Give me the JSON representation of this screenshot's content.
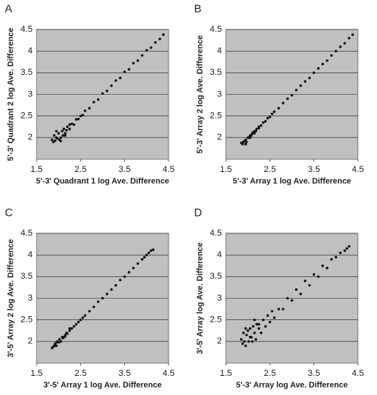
{
  "chart_data": [
    {
      "type": "scatter",
      "panel_label": "A",
      "x_label": "5'-3' Quadrant 1 log Ave. Difference",
      "y_label": "5'-3' Quadrant 2 log Ave. Difference",
      "x": [
        1.85,
        1.88,
        1.9,
        1.92,
        1.95,
        1.97,
        2.0,
        2.02,
        2.05,
        2.08,
        2.1,
        2.12,
        2.15,
        2.18,
        2.2,
        2.25,
        2.3,
        2.35,
        2.4,
        2.45,
        2.5,
        2.55,
        2.6,
        2.7,
        2.8,
        2.9,
        3.0,
        3.1,
        3.2,
        3.3,
        3.4,
        3.5,
        3.6,
        3.7,
        3.8,
        3.9,
        4.0,
        4.1,
        4.2,
        4.3,
        4.38,
        1.95,
        2.05,
        2.15,
        2.25
      ],
      "values": [
        1.95,
        1.9,
        2.05,
        1.93,
        2.0,
        1.98,
        2.1,
        1.95,
        2.0,
        2.15,
        2.05,
        2.2,
        2.1,
        2.17,
        2.25,
        2.2,
        2.32,
        2.3,
        2.42,
        2.43,
        2.5,
        2.52,
        2.62,
        2.68,
        2.82,
        2.88,
        3.02,
        3.08,
        3.2,
        3.32,
        3.38,
        3.52,
        3.58,
        3.72,
        3.78,
        3.9,
        4.02,
        4.08,
        4.2,
        4.28,
        4.38,
        2.15,
        1.92,
        2.05,
        2.3
      ],
      "color": "#111111",
      "xlim": [
        1.5,
        4.5
      ],
      "ylim": [
        1.5,
        4.5
      ],
      "xticks": [
        1.5,
        2.5,
        3.5,
        4.5
      ],
      "yticks": [
        2,
        2.5,
        3,
        3.5,
        4,
        4.5
      ],
      "grid": true
    },
    {
      "type": "scatter",
      "panel_label": "B",
      "x_label": "5'-3' Array 1 log Ave. Difference",
      "y_label": "5'-3' Array 2 log Ave. Difference",
      "x": [
        1.85,
        1.88,
        1.9,
        1.92,
        1.95,
        1.97,
        2.0,
        2.02,
        2.05,
        2.08,
        2.1,
        2.12,
        2.15,
        2.18,
        2.2,
        2.25,
        2.3,
        2.35,
        2.4,
        2.45,
        2.5,
        2.55,
        2.6,
        2.7,
        2.8,
        2.9,
        3.0,
        3.1,
        3.2,
        3.3,
        3.4,
        3.5,
        3.6,
        3.7,
        3.8,
        3.9,
        4.0,
        4.1,
        4.2,
        4.3,
        4.38,
        1.95,
        2.05,
        2.15,
        2.25
      ],
      "values": [
        1.88,
        1.85,
        1.9,
        1.92,
        1.95,
        1.9,
        2.0,
        2.0,
        2.05,
        2.05,
        2.1,
        2.12,
        2.15,
        2.15,
        2.2,
        2.25,
        2.28,
        2.35,
        2.38,
        2.45,
        2.48,
        2.55,
        2.6,
        2.68,
        2.8,
        2.9,
        2.98,
        3.1,
        3.2,
        3.3,
        3.38,
        3.5,
        3.6,
        3.7,
        3.78,
        3.9,
        4.0,
        4.1,
        4.18,
        4.3,
        4.38,
        1.85,
        2.0,
        2.1,
        2.22
      ],
      "color": "#111111",
      "xlim": [
        1.5,
        4.5
      ],
      "ylim": [
        1.5,
        4.5
      ],
      "xticks": [
        1.5,
        2.5,
        3.5,
        4.5
      ],
      "yticks": [
        2,
        2.5,
        3,
        3.5,
        4,
        4.5
      ],
      "grid": true
    },
    {
      "type": "scatter",
      "panel_label": "C",
      "x_label": "3'-5' Array 1 log Ave. Difference",
      "y_label": "3'-5' Array 2 log Ave. Difference",
      "x": [
        1.85,
        1.88,
        1.9,
        1.92,
        1.95,
        1.97,
        2.0,
        2.02,
        2.05,
        2.08,
        2.1,
        2.12,
        2.15,
        2.18,
        2.2,
        2.25,
        2.3,
        2.35,
        2.4,
        2.45,
        2.5,
        2.55,
        2.6,
        2.7,
        2.8,
        2.9,
        3.0,
        3.1,
        3.2,
        3.3,
        3.4,
        3.5,
        3.6,
        3.7,
        3.8,
        3.9,
        3.95,
        4.0,
        4.05,
        4.1,
        4.15,
        1.95,
        2.05,
        2.15,
        2.25
      ],
      "values": [
        1.85,
        1.88,
        1.9,
        1.95,
        1.9,
        2.0,
        1.98,
        2.05,
        2.0,
        2.1,
        2.08,
        2.1,
        2.15,
        2.2,
        2.18,
        2.25,
        2.3,
        2.35,
        2.4,
        2.45,
        2.5,
        2.55,
        2.6,
        2.7,
        2.8,
        2.92,
        3.0,
        3.1,
        3.2,
        3.3,
        3.42,
        3.5,
        3.6,
        3.7,
        3.8,
        3.9,
        3.95,
        4.0,
        4.05,
        4.1,
        4.12,
        1.98,
        2.0,
        2.12,
        2.3
      ],
      "color": "#111111",
      "xlim": [
        1.5,
        4.5
      ],
      "ylim": [
        1.5,
        4.5
      ],
      "xticks": [
        1.5,
        2.5,
        3.5,
        4.5
      ],
      "yticks": [
        2,
        2.5,
        3,
        3.5,
        4,
        4.5
      ],
      "grid": true
    },
    {
      "type": "scatter",
      "panel_label": "D",
      "x_label": "5'-3' Array log Ave. Difference",
      "y_label": "3'-5' Array log Ave. Difference",
      "x": [
        1.85,
        1.88,
        1.9,
        1.92,
        1.95,
        1.97,
        2.0,
        2.02,
        2.05,
        2.08,
        2.1,
        2.12,
        2.15,
        2.18,
        2.2,
        2.25,
        2.3,
        2.35,
        2.4,
        2.45,
        2.5,
        2.55,
        2.6,
        2.7,
        2.8,
        2.9,
        3.0,
        3.1,
        3.2,
        3.3,
        3.4,
        3.5,
        3.6,
        3.7,
        3.8,
        3.9,
        4.0,
        4.1,
        4.2,
        4.25,
        4.3,
        1.95,
        2.05,
        2.15,
        2.25
      ],
      "values": [
        2.05,
        1.95,
        2.2,
        2.0,
        1.9,
        2.15,
        2.25,
        2.0,
        2.3,
        2.1,
        2.0,
        2.35,
        2.2,
        2.05,
        2.4,
        2.3,
        2.2,
        2.5,
        2.35,
        2.6,
        2.45,
        2.7,
        2.55,
        2.75,
        2.75,
        3.0,
        2.95,
        3.2,
        3.1,
        3.4,
        3.3,
        3.55,
        3.5,
        3.75,
        3.7,
        3.9,
        3.95,
        4.05,
        4.1,
        4.15,
        4.2,
        2.3,
        2.1,
        2.5,
        2.4
      ],
      "color": "#111111",
      "xlim": [
        1.5,
        4.5
      ],
      "ylim": [
        1.5,
        4.5
      ],
      "xticks": [
        1.5,
        2.5,
        3.5,
        4.5
      ],
      "yticks": [
        2,
        2.5,
        3,
        3.5,
        4,
        4.5
      ],
      "grid": true
    }
  ]
}
